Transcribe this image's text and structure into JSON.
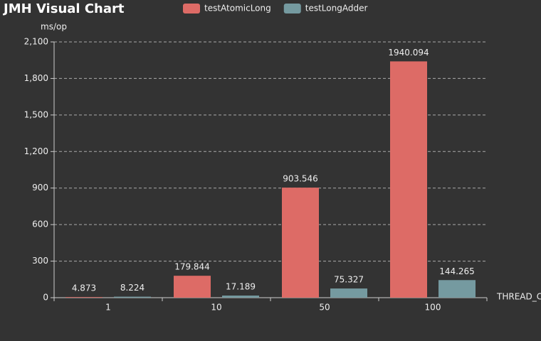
{
  "chart_data": {
    "type": "bar",
    "title": "JMH Visual Chart",
    "y_label": "ms/op",
    "x_label": "THREAD_C",
    "categories": [
      "1",
      "10",
      "50",
      "100"
    ],
    "series": [
      {
        "name": "testAtomicLong",
        "color": "#dd6b66",
        "values": [
          4.873,
          179.844,
          903.546,
          1940.094
        ]
      },
      {
        "name": "testLongAdder",
        "color": "#759aa0",
        "values": [
          8.224,
          17.189,
          75.327,
          144.265
        ]
      }
    ],
    "ylim": [
      0,
      2100
    ],
    "yticks": [
      0,
      300,
      600,
      900,
      {
        "value": 1200,
        "label": "1,200"
      },
      {
        "value": 1500,
        "label": "1,500"
      },
      {
        "value": 1800,
        "label": "1,800"
      },
      {
        "value": 2100,
        "label": "2,100"
      }
    ],
    "grid": true,
    "legend": "top"
  }
}
